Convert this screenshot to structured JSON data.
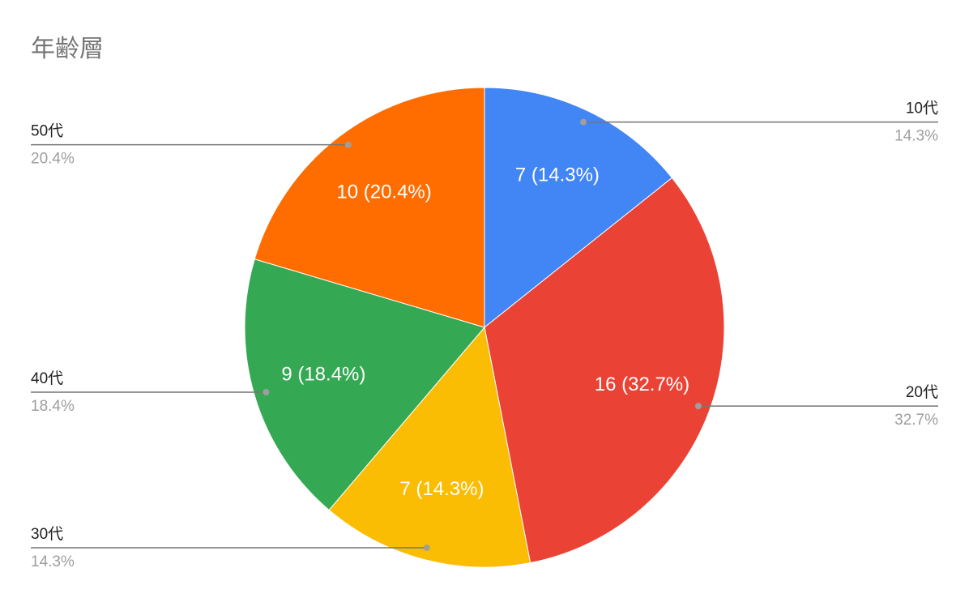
{
  "chart_data": {
    "type": "pie",
    "title": "年齢層",
    "categories": [
      "10代",
      "20代",
      "30代",
      "40代",
      "50代"
    ],
    "values": [
      7,
      16,
      7,
      9,
      10
    ],
    "value_labels": [
      "7 (14.3%)",
      "16 (32.7%)",
      "7 (14.3%)",
      "9 (18.4%)",
      "10 (20.4%)"
    ],
    "percent_labels": [
      "14.3%",
      "32.7%",
      "14.3%",
      "18.4%",
      "20.4%"
    ],
    "colors": [
      "#4285f4",
      "#ea4335",
      "#fbbc04",
      "#34a853",
      "#ff6d01"
    ]
  }
}
